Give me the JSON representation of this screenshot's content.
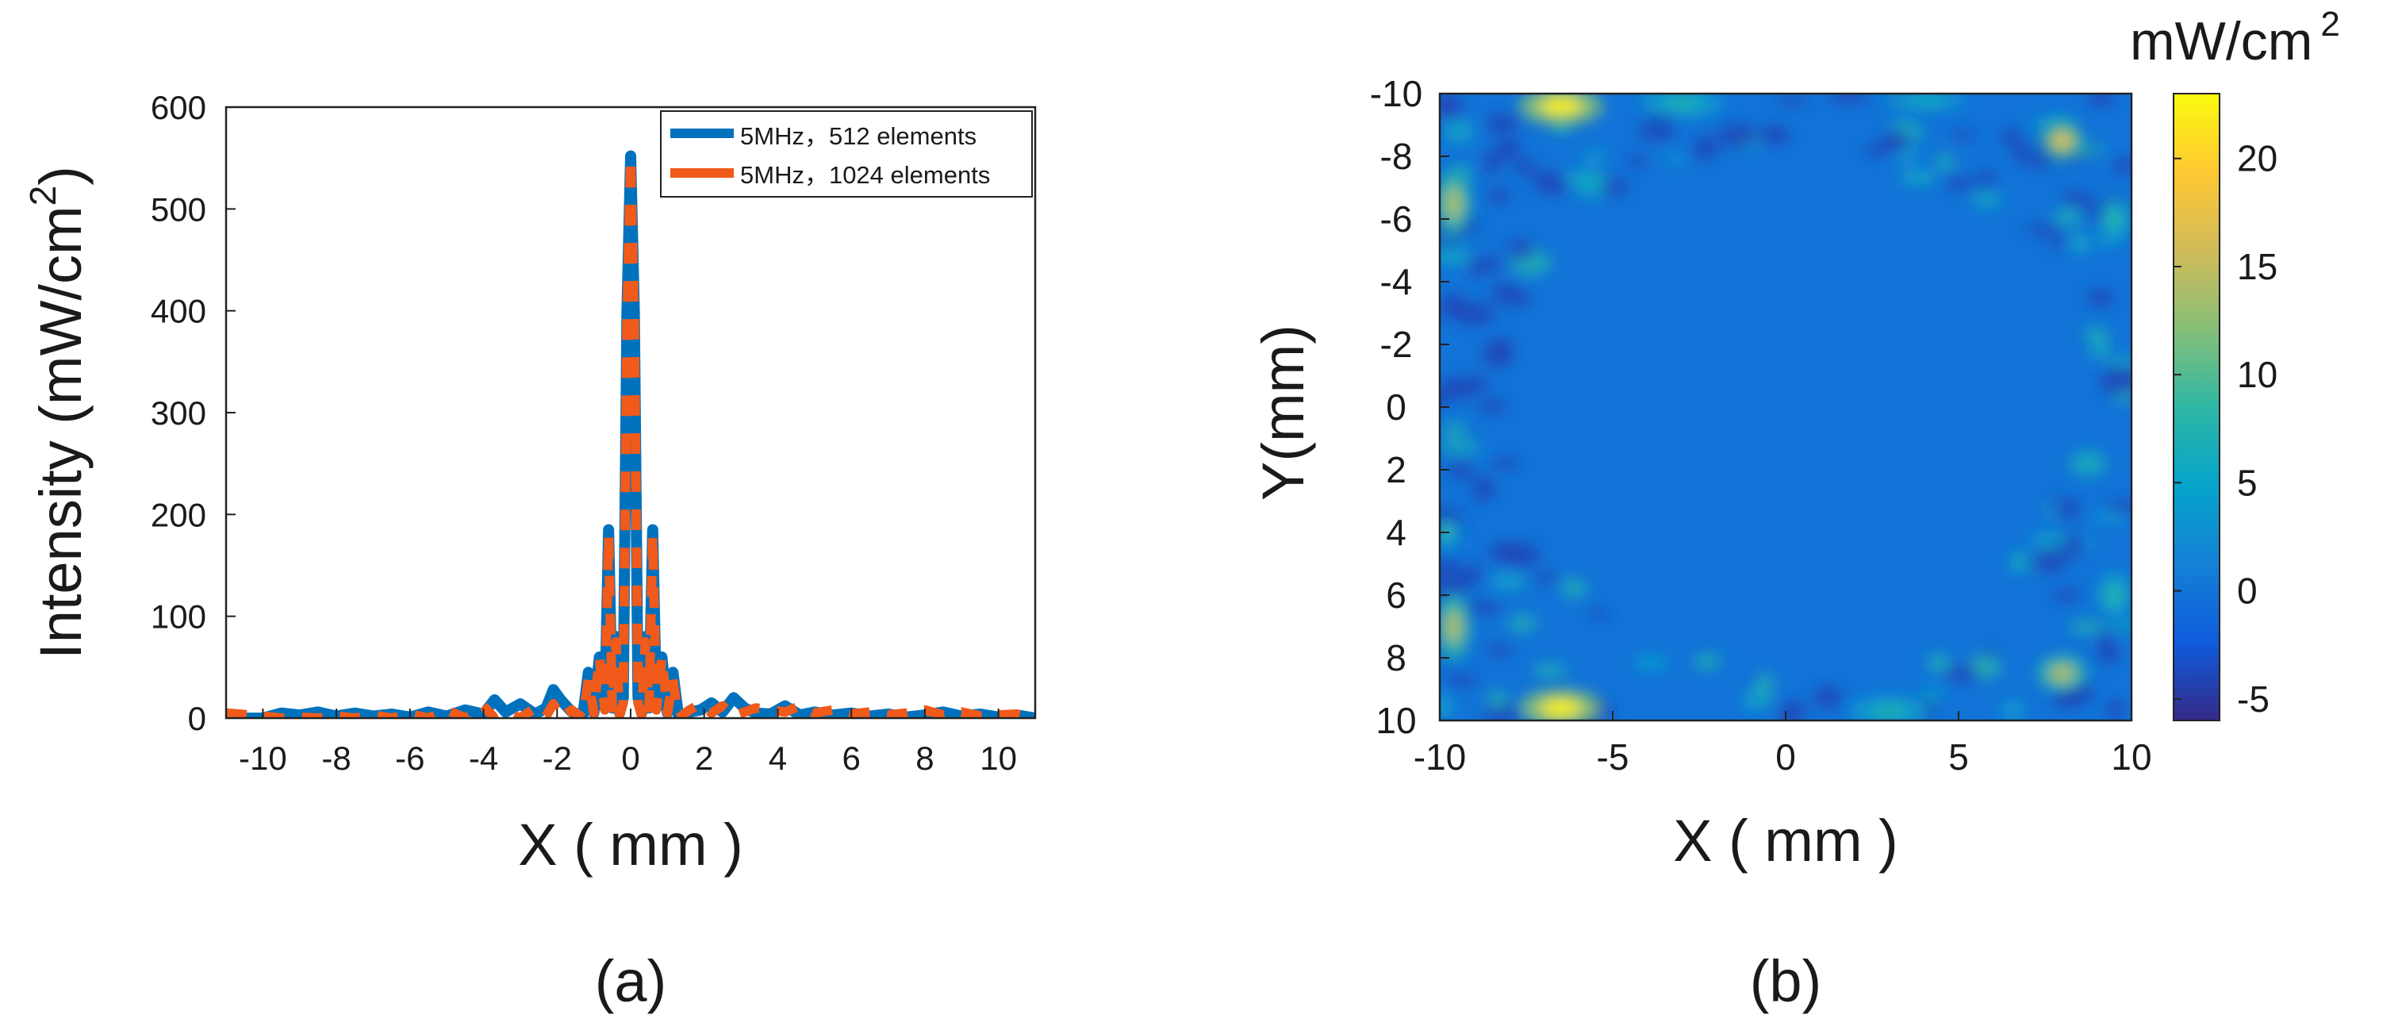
{
  "figure": {
    "panel_a_caption": "(a)",
    "panel_b_caption": "(b)"
  },
  "chart_data": [
    {
      "type": "line",
      "panel": "a",
      "title": "",
      "xlabel": "X ( mm )",
      "ylabel": "Intensity (mW/cm",
      "ylabel_sup": "2",
      "ylabel_close": ")",
      "xlim": [
        -11,
        11
      ],
      "ylim": [
        0,
        600
      ],
      "xticks": [
        -10,
        -8,
        -6,
        -4,
        -2,
        0,
        2,
        4,
        6,
        8,
        10
      ],
      "xtick_labels": [
        "-10",
        "-8",
        "-6",
        "-4",
        "-2",
        "0",
        "2",
        "4",
        "6",
        "8",
        "10"
      ],
      "yticks": [
        0,
        100,
        200,
        300,
        400,
        500,
        600
      ],
      "ytick_labels": [
        "0",
        "100",
        "200",
        "300",
        "400",
        "500",
        "600"
      ],
      "legend_position": "top-right",
      "series": [
        {
          "name": "5MHz，512 elements",
          "color": "#0072BD",
          "x": [
            -11,
            -10,
            -9.5,
            -9,
            -8.5,
            -8,
            -7.5,
            -7,
            -6.5,
            -6,
            -5.5,
            -5,
            -4.5,
            -4,
            -3.7,
            -3.4,
            -3,
            -2.6,
            -2.3,
            -2.1,
            -1.9,
            -1.6,
            -1.3,
            -1.15,
            -1.0,
            -0.85,
            -0.7,
            -0.6,
            -0.5,
            -0.4,
            -0.3,
            -0.2,
            -0.1,
            0,
            0.1,
            0.2,
            0.3,
            0.4,
            0.5,
            0.6,
            0.7,
            0.85,
            1.0,
            1.15,
            1.3,
            1.6,
            1.9,
            2.2,
            2.5,
            2.8,
            3.1,
            3.4,
            3.8,
            4.2,
            4.6,
            5,
            5.5,
            6,
            6.5,
            7,
            7.5,
            8,
            8.5,
            9,
            9.5,
            10,
            10.5,
            11
          ],
          "y": [
            0,
            0,
            5,
            3,
            6,
            2,
            5,
            2,
            4,
            1,
            6,
            2,
            8,
            4,
            18,
            6,
            14,
            4,
            10,
            28,
            18,
            6,
            2,
            45,
            5,
            60,
            10,
            185,
            10,
            80,
            5,
            20,
            400,
            552,
            400,
            20,
            5,
            80,
            10,
            185,
            10,
            60,
            5,
            45,
            2,
            6,
            8,
            15,
            6,
            20,
            10,
            5,
            4,
            12,
            3,
            6,
            3,
            5,
            2,
            4,
            1,
            3,
            6,
            2,
            4,
            1,
            3,
            0
          ]
        },
        {
          "name": "5MHz，1024 elements",
          "color": "#F05A1A",
          "x": [
            -11,
            -10,
            -9.5,
            -9,
            -8.5,
            -8,
            -7.5,
            -7,
            -6.5,
            -6,
            -5.5,
            -5,
            -4.5,
            -4,
            -3.7,
            -3.4,
            -3,
            -2.6,
            -2.3,
            -2.1,
            -1.9,
            -1.6,
            -1.3,
            -1.15,
            -1.0,
            -0.85,
            -0.7,
            -0.6,
            -0.5,
            -0.4,
            -0.3,
            -0.2,
            -0.1,
            0,
            0.1,
            0.2,
            0.3,
            0.4,
            0.5,
            0.6,
            0.7,
            0.85,
            1.0,
            1.15,
            1.3,
            1.6,
            1.9,
            2.2,
            2.5,
            2.8,
            3.1,
            3.4,
            3.8,
            4.2,
            4.6,
            5,
            5.5,
            6,
            6.5,
            7,
            7.5,
            8,
            8.5,
            9,
            9.5,
            10,
            10.5,
            11
          ],
          "y": [
            5,
            2,
            0,
            1,
            0,
            2,
            0,
            3,
            0,
            4,
            0,
            8,
            0,
            12,
            0,
            6,
            0,
            10,
            2,
            14,
            0,
            8,
            0,
            38,
            5,
            60,
            8,
            180,
            10,
            75,
            3,
            15,
            390,
            550,
            390,
            15,
            3,
            75,
            10,
            180,
            8,
            60,
            5,
            38,
            0,
            8,
            14,
            5,
            12,
            2,
            6,
            10,
            8,
            6,
            12,
            5,
            8,
            4,
            6,
            3,
            5,
            8,
            3,
            6,
            2,
            3,
            4,
            1
          ]
        }
      ]
    },
    {
      "type": "heatmap",
      "panel": "b",
      "xlabel": "X ( mm )",
      "ylabel": "Y(mm)",
      "xlim": [
        -10,
        10
      ],
      "ylim": [
        -10,
        10
      ],
      "xticks": [
        -10,
        -5,
        0,
        5,
        10
      ],
      "xtick_labels": [
        "-10",
        "-5",
        "0",
        "5",
        "10"
      ],
      "yticks": [
        -10,
        -8,
        -6,
        -4,
        -2,
        0,
        2,
        4,
        6,
        8,
        10
      ],
      "ytick_labels": [
        "-10",
        "-8",
        "-6",
        "-4",
        "-2",
        "0",
        "2",
        "4",
        "6",
        "8",
        "10"
      ],
      "y_direction": "top-to-bottom increasing",
      "colorbar_label": "mW/cm",
      "colorbar_label_sup": "2",
      "colorbar_range": [
        -6,
        23
      ],
      "colorbar_ticks": [
        20,
        15,
        10,
        5,
        0,
        -5
      ],
      "colorbar_tick_labels": [
        "20",
        "15",
        "10",
        "5",
        "0",
        "-5"
      ],
      "colormap": "parula",
      "colormap_stops": [
        "#352A87",
        "#0F5CDD",
        "#1481D6",
        "#06A4CA",
        "#2EB7A4",
        "#87BF77",
        "#D1BB59",
        "#FEC832",
        "#F9FB0E"
      ],
      "background_value": 0,
      "hotspots": [
        {
          "x": -6.5,
          "y": -9.6,
          "value": 22,
          "sx": 1.0,
          "sy": 0.5
        },
        {
          "x": -6.5,
          "y": 9.6,
          "value": 22,
          "sx": 1.0,
          "sy": 0.5
        },
        {
          "x": -9.6,
          "y": -6.5,
          "value": 14,
          "sx": 0.4,
          "sy": 0.9
        },
        {
          "x": -9.6,
          "y": 7.0,
          "value": 14,
          "sx": 0.4,
          "sy": 0.9
        },
        {
          "x": 8.0,
          "y": -8.5,
          "value": 17,
          "sx": 0.5,
          "sy": 0.5
        },
        {
          "x": 8.0,
          "y": 8.5,
          "value": 14,
          "sx": 0.6,
          "sy": 0.5
        },
        {
          "x": 9.5,
          "y": -6.0,
          "value": 8,
          "sx": 0.4,
          "sy": 0.6
        },
        {
          "x": 9.5,
          "y": 6.0,
          "value": 8,
          "sx": 0.4,
          "sy": 0.6
        },
        {
          "x": -9.8,
          "y": 4.0,
          "value": 9,
          "sx": 0.3,
          "sy": 0.4
        },
        {
          "x": -3.0,
          "y": -9.7,
          "value": 7,
          "sx": 1.0,
          "sy": 0.4
        },
        {
          "x": 3.0,
          "y": 9.7,
          "value": 7,
          "sx": 1.0,
          "sy": 0.4
        },
        {
          "x": 4.0,
          "y": -9.8,
          "value": 6,
          "sx": 1.0,
          "sy": 0.3
        }
      ]
    }
  ]
}
